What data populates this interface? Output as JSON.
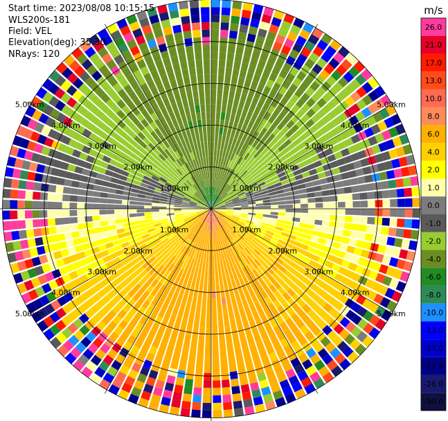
{
  "header": {
    "start_time": "Start time: 2023/08/08 10:15:15",
    "instrument": "WLS200s-181",
    "field": "Field: VEL",
    "elevation": "Elevation(deg): 35.30",
    "nrays": "NRays: 120"
  },
  "chart_data": {
    "type": "heatmap",
    "subtype": "ppi-polar",
    "units": "m/s",
    "range_rings_km": [
      1.0,
      2.0,
      3.0,
      4.0,
      5.0
    ],
    "ring_labels": [
      "1.00km",
      "2.00km",
      "3.00km",
      "4.00km",
      "5.00km"
    ],
    "nrays": 120,
    "colorbar": {
      "title": "m/s",
      "ticks": [
        26.0,
        21.0,
        17.0,
        13.0,
        10.0,
        8.0,
        6.0,
        4.0,
        2.0,
        1.0,
        0.0,
        -1.0,
        -2.0,
        -4.0,
        -6.0,
        -8.0,
        -10.0,
        -13.0,
        -17.0,
        -21.0,
        -26.0,
        -30.0
      ],
      "tick_labels": [
        "26.0",
        "21.0",
        "17.0",
        "13.0",
        "10.0",
        "8.0",
        "6.0",
        "4.0",
        "2.0",
        "1.0",
        "0.0",
        "-1.0",
        "-2.0",
        "-4.0",
        "-6.0",
        "-8.0",
        "-10.0",
        "-13.0",
        "-17.0",
        "-21.0",
        "-26.0",
        "-30.0"
      ],
      "colors": [
        "#ff3c9e",
        "#e6002a",
        "#ff1a00",
        "#ff4a1a",
        "#ff6b52",
        "#ff8a5a",
        "#ffb000",
        "#ffd000",
        "#ffff00",
        "#ffffaa",
        "#7c7c7c",
        "#5a5a5a",
        "#98cc30",
        "#6b8e23",
        "#228b22",
        "#2e8b57",
        "#1e90ff",
        "#0000ff",
        "#0000cd",
        "#00008b",
        "#191970",
        "#101040"
      ]
    },
    "velocity_pattern": {
      "inner_peak_ms": 10.0,
      "inner_scale_km": 0.7,
      "outer_ms": 5.0,
      "outer_range_km": [
        2.0,
        4.0
      ],
      "noise_onset_km": 4.0,
      "approaching_azimuth_deg": 0
    }
  }
}
